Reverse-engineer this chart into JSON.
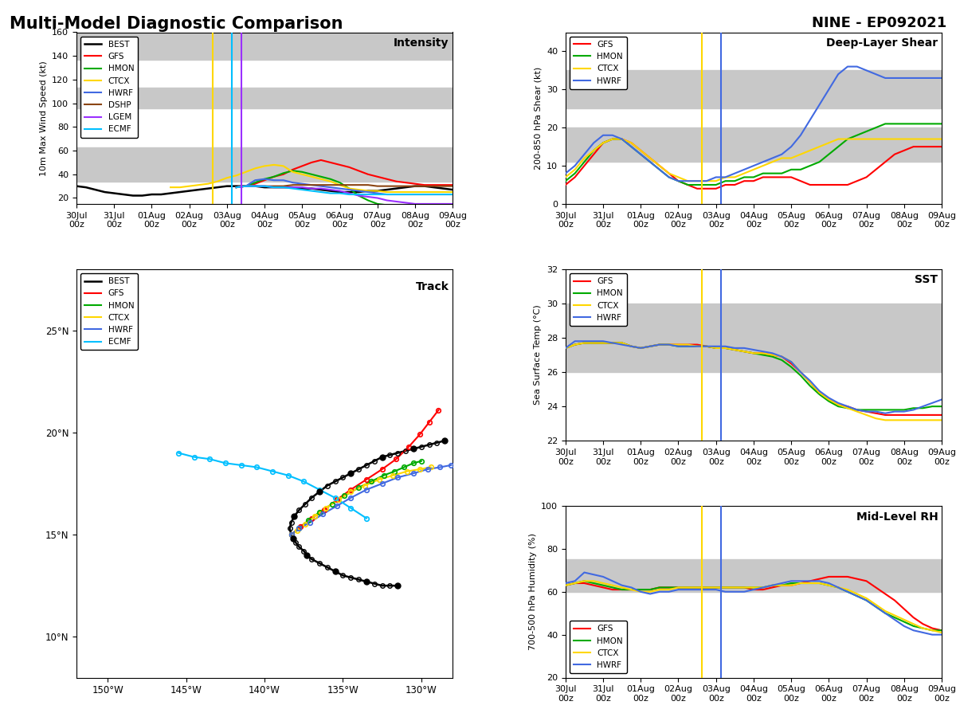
{
  "title_left": "Multi-Model Diagnostic Comparison",
  "title_right": "NINE - EP092021",
  "intensity": {
    "ylabel": "10m Max Wind Speed (kt)",
    "ylim": [
      15,
      160
    ],
    "yticks": [
      20,
      40,
      60,
      80,
      100,
      120,
      140,
      160
    ],
    "gray_band_ranges": [
      [
        34,
        63
      ],
      [
        96,
        113
      ],
      [
        137,
        160
      ]
    ],
    "models": {
      "BEST": {
        "color": "#000000",
        "lw": 1.8,
        "data": [
          30,
          29,
          27,
          25,
          24,
          23,
          22,
          22,
          23,
          23,
          24,
          25,
          26,
          27,
          28,
          29,
          30,
          30,
          30,
          30,
          29,
          29,
          29,
          29,
          28,
          28,
          27,
          26,
          25,
          25,
          25,
          26,
          26,
          27,
          28,
          29,
          30,
          30,
          29,
          28,
          27
        ]
      },
      "GFS": {
        "color": "#ff0000",
        "lw": 1.5,
        "data": [
          null,
          null,
          null,
          null,
          null,
          null,
          null,
          null,
          null,
          null,
          null,
          null,
          null,
          null,
          null,
          null,
          null,
          29,
          30,
          32,
          35,
          38,
          40,
          44,
          47,
          50,
          52,
          50,
          48,
          46,
          43,
          40,
          38,
          36,
          34,
          33,
          32,
          31,
          31,
          31,
          31
        ]
      },
      "HMON": {
        "color": "#00aa00",
        "lw": 1.5,
        "data": [
          null,
          null,
          null,
          null,
          null,
          null,
          null,
          null,
          null,
          null,
          null,
          null,
          null,
          null,
          null,
          null,
          null,
          29,
          30,
          33,
          36,
          38,
          41,
          43,
          42,
          40,
          38,
          36,
          33,
          28,
          22,
          18,
          15,
          14,
          14,
          13,
          13,
          13,
          13,
          13,
          13
        ]
      },
      "CTCX": {
        "color": "#ffd700",
        "lw": 1.5,
        "data": [
          null,
          null,
          null,
          null,
          null,
          null,
          null,
          null,
          null,
          null,
          29,
          29,
          30,
          31,
          32,
          34,
          37,
          39,
          42,
          45,
          47,
          48,
          47,
          42,
          40,
          38,
          36,
          34,
          31,
          28,
          27,
          26,
          26,
          25,
          25,
          25,
          25,
          25,
          25,
          25,
          25
        ]
      },
      "HWRF": {
        "color": "#4169e1",
        "lw": 1.5,
        "data": [
          null,
          null,
          null,
          null,
          null,
          null,
          null,
          null,
          null,
          null,
          null,
          null,
          null,
          null,
          null,
          null,
          null,
          29,
          30,
          35,
          36,
          35,
          35,
          33,
          32,
          31,
          30,
          29,
          28,
          27,
          26,
          25,
          24,
          23,
          23,
          23,
          23,
          23,
          23,
          23,
          23
        ]
      },
      "DSHP": {
        "color": "#8b4513",
        "lw": 1.5,
        "data": [
          null,
          null,
          null,
          null,
          null,
          null,
          null,
          null,
          null,
          null,
          null,
          null,
          null,
          null,
          null,
          null,
          null,
          29,
          30,
          30,
          30,
          30,
          30,
          31,
          31,
          31,
          31,
          31,
          31,
          31,
          31,
          31,
          30,
          30,
          30,
          30,
          30,
          30,
          30,
          30,
          30
        ]
      },
      "LGEM": {
        "color": "#9b30ff",
        "lw": 1.5,
        "data": [
          null,
          null,
          null,
          null,
          null,
          null,
          null,
          null,
          null,
          null,
          null,
          null,
          null,
          null,
          null,
          null,
          null,
          29,
          30,
          30,
          30,
          29,
          29,
          29,
          29,
          28,
          28,
          27,
          26,
          24,
          22,
          21,
          20,
          18,
          17,
          16,
          15,
          15,
          15,
          15,
          15
        ]
      },
      "ECMF": {
        "color": "#00bfff",
        "lw": 1.5,
        "data": [
          null,
          null,
          null,
          null,
          null,
          null,
          null,
          null,
          null,
          null,
          null,
          null,
          null,
          null,
          null,
          null,
          null,
          29,
          30,
          30,
          30,
          29,
          29,
          28,
          27,
          26,
          25,
          24,
          24,
          23,
          23,
          23,
          23,
          23,
          23,
          23,
          23,
          23,
          23,
          23,
          23
        ]
      }
    }
  },
  "shear": {
    "ylabel": "200-850 hPa Shear (kt)",
    "ylim": [
      0,
      45
    ],
    "yticks": [
      0,
      10,
      20,
      30,
      40
    ],
    "gray_band_ranges": [
      [
        11,
        20
      ],
      [
        25,
        35
      ]
    ],
    "models": {
      "GFS": {
        "color": "#ff0000",
        "lw": 1.5,
        "data": [
          5,
          7,
          10,
          13,
          16,
          17,
          17,
          16,
          14,
          12,
          10,
          8,
          6,
          5,
          4,
          4,
          4,
          5,
          5,
          6,
          6,
          7,
          7,
          7,
          7,
          6,
          5,
          5,
          5,
          5,
          5,
          6,
          7,
          9,
          11,
          13,
          14,
          15,
          15,
          15,
          15
        ]
      },
      "HMON": {
        "color": "#00aa00",
        "lw": 1.5,
        "data": [
          6,
          8,
          11,
          14,
          16,
          17,
          17,
          15,
          13,
          11,
          9,
          7,
          6,
          5,
          5,
          5,
          5,
          6,
          6,
          7,
          7,
          8,
          8,
          8,
          9,
          9,
          10,
          11,
          13,
          15,
          17,
          18,
          19,
          20,
          21,
          21,
          21,
          21,
          21,
          21,
          21
        ]
      },
      "CTCX": {
        "color": "#ffd700",
        "lw": 1.5,
        "data": [
          7,
          9,
          12,
          14,
          16,
          17,
          17,
          16,
          14,
          12,
          10,
          8,
          7,
          6,
          6,
          6,
          6,
          7,
          7,
          8,
          9,
          10,
          11,
          12,
          12,
          13,
          14,
          15,
          16,
          17,
          17,
          17,
          17,
          17,
          17,
          17,
          17,
          17,
          17,
          17,
          17
        ]
      },
      "HWRF": {
        "color": "#4169e1",
        "lw": 1.5,
        "data": [
          8,
          10,
          13,
          16,
          18,
          18,
          17,
          15,
          13,
          11,
          9,
          7,
          6,
          6,
          6,
          6,
          7,
          7,
          8,
          9,
          10,
          11,
          12,
          13,
          15,
          18,
          22,
          26,
          30,
          34,
          36,
          36,
          35,
          34,
          33,
          33,
          33,
          33,
          33,
          33,
          33
        ]
      }
    }
  },
  "sst": {
    "ylabel": "Sea Surface Temp (°C)",
    "ylim": [
      22,
      32
    ],
    "yticks": [
      22,
      24,
      26,
      28,
      30,
      32
    ],
    "gray_band_ranges": [
      [
        26,
        30
      ]
    ],
    "models": {
      "GFS": {
        "color": "#ff0000",
        "lw": 1.5,
        "data": [
          27.4,
          27.6,
          27.7,
          27.7,
          27.7,
          27.7,
          27.7,
          27.5,
          27.4,
          27.5,
          27.6,
          27.6,
          27.6,
          27.6,
          27.6,
          27.5,
          27.4,
          27.4,
          27.3,
          27.2,
          27.1,
          27.1,
          27.0,
          26.9,
          26.5,
          26.0,
          25.4,
          24.8,
          24.4,
          24.1,
          24.0,
          23.8,
          23.7,
          23.6,
          23.5,
          23.5,
          23.5,
          23.5,
          23.5,
          23.5,
          23.5
        ]
      },
      "HMON": {
        "color": "#00aa00",
        "lw": 1.5,
        "data": [
          27.4,
          27.6,
          27.7,
          27.7,
          27.7,
          27.7,
          27.7,
          27.5,
          27.4,
          27.5,
          27.6,
          27.6,
          27.5,
          27.5,
          27.5,
          27.5,
          27.4,
          27.4,
          27.3,
          27.2,
          27.1,
          27.0,
          26.9,
          26.7,
          26.3,
          25.8,
          25.2,
          24.7,
          24.3,
          24.0,
          23.9,
          23.8,
          23.8,
          23.8,
          23.8,
          23.8,
          23.8,
          23.9,
          23.9,
          24.0,
          24.0
        ]
      },
      "CTCX": {
        "color": "#ffd700",
        "lw": 1.5,
        "data": [
          27.4,
          27.6,
          27.7,
          27.7,
          27.7,
          27.7,
          27.7,
          27.5,
          27.4,
          27.5,
          27.6,
          27.6,
          27.6,
          27.6,
          27.5,
          27.5,
          27.4,
          27.4,
          27.3,
          27.2,
          27.1,
          27.1,
          27.0,
          26.9,
          26.6,
          26.0,
          25.4,
          24.8,
          24.4,
          24.1,
          23.9,
          23.7,
          23.5,
          23.3,
          23.2,
          23.2,
          23.2,
          23.2,
          23.2,
          23.2,
          23.2
        ]
      },
      "HWRF": {
        "color": "#4169e1",
        "lw": 1.5,
        "data": [
          27.4,
          27.8,
          27.8,
          27.8,
          27.8,
          27.7,
          27.6,
          27.5,
          27.4,
          27.5,
          27.6,
          27.6,
          27.5,
          27.5,
          27.5,
          27.5,
          27.5,
          27.5,
          27.4,
          27.4,
          27.3,
          27.2,
          27.1,
          26.9,
          26.6,
          26.0,
          25.5,
          24.9,
          24.5,
          24.2,
          24.0,
          23.8,
          23.7,
          23.7,
          23.6,
          23.7,
          23.7,
          23.8,
          24.0,
          24.2,
          24.4
        ]
      }
    }
  },
  "rh": {
    "ylabel": "700-500 hPa Humidity (%)",
    "ylim": [
      20,
      100
    ],
    "yticks": [
      20,
      40,
      60,
      80,
      100
    ],
    "gray_band_ranges": [
      [
        60,
        75
      ]
    ],
    "models": {
      "GFS": {
        "color": "#ff0000",
        "lw": 1.5,
        "data": [
          63,
          64,
          64,
          63,
          62,
          61,
          61,
          61,
          61,
          61,
          62,
          62,
          62,
          62,
          62,
          62,
          62,
          62,
          62,
          62,
          61,
          61,
          62,
          63,
          63,
          64,
          65,
          66,
          67,
          67,
          67,
          66,
          65,
          62,
          59,
          56,
          52,
          48,
          45,
          43,
          42
        ]
      },
      "HMON": {
        "color": "#00aa00",
        "lw": 1.5,
        "data": [
          63,
          64,
          65,
          64,
          63,
          62,
          61,
          61,
          61,
          61,
          62,
          62,
          62,
          62,
          62,
          62,
          62,
          62,
          62,
          62,
          62,
          62,
          63,
          63,
          64,
          64,
          64,
          64,
          63,
          62,
          60,
          58,
          56,
          53,
          50,
          48,
          46,
          44,
          43,
          42,
          42
        ]
      },
      "CTCX": {
        "color": "#ffd700",
        "lw": 1.5,
        "data": [
          63,
          64,
          65,
          65,
          64,
          63,
          62,
          61,
          60,
          60,
          61,
          61,
          62,
          62,
          62,
          62,
          62,
          62,
          62,
          62,
          62,
          62,
          63,
          63,
          63,
          64,
          64,
          64,
          63,
          62,
          61,
          59,
          57,
          54,
          51,
          49,
          47,
          45,
          43,
          42,
          41
        ]
      },
      "HWRF": {
        "color": "#4169e1",
        "lw": 1.5,
        "data": [
          64,
          65,
          69,
          68,
          67,
          65,
          63,
          62,
          60,
          59,
          60,
          60,
          61,
          61,
          61,
          61,
          61,
          60,
          60,
          60,
          61,
          62,
          63,
          64,
          65,
          65,
          65,
          65,
          64,
          62,
          60,
          58,
          56,
          53,
          50,
          47,
          44,
          42,
          41,
          40,
          40
        ]
      }
    }
  },
  "track": {
    "best_lons": [
      -131.5,
      -132.0,
      -132.5,
      -133.0,
      -133.5,
      -134.0,
      -134.5,
      -135.0,
      -135.5,
      -136.0,
      -136.5,
      -137.0,
      -137.3,
      -137.5,
      -137.8,
      -138.0,
      -138.2,
      -138.3,
      -138.4,
      -138.3,
      -138.1,
      -137.8,
      -137.4,
      -137.0,
      -136.5,
      -136.0,
      -135.5,
      -135.0,
      -134.5,
      -134.0,
      -133.5,
      -133.0,
      -132.5,
      -132.0,
      -131.5,
      -131.0,
      -130.5,
      -130.0,
      -129.5,
      -129.0,
      -128.5
    ],
    "best_lats": [
      12.5,
      12.5,
      12.5,
      12.6,
      12.7,
      12.8,
      12.9,
      13.0,
      13.2,
      13.4,
      13.6,
      13.8,
      14.0,
      14.2,
      14.4,
      14.6,
      14.8,
      15.0,
      15.3,
      15.6,
      15.9,
      16.2,
      16.5,
      16.8,
      17.1,
      17.4,
      17.6,
      17.8,
      18.0,
      18.2,
      18.4,
      18.6,
      18.8,
      18.9,
      19.0,
      19.1,
      19.2,
      19.3,
      19.4,
      19.5,
      19.6
    ],
    "gfs_lons": [
      -138.3,
      -137.7,
      -137.0,
      -136.2,
      -135.4,
      -134.5,
      -133.5,
      -132.5,
      -131.6,
      -130.8,
      -130.1,
      -129.5,
      -128.9
    ],
    "gfs_lats": [
      15.0,
      15.4,
      15.8,
      16.2,
      16.7,
      17.2,
      17.7,
      18.2,
      18.7,
      19.3,
      19.9,
      20.5,
      21.1
    ],
    "hmon_lons": [
      -138.3,
      -137.8,
      -137.2,
      -136.5,
      -135.7,
      -134.9,
      -134.0,
      -133.2,
      -132.4,
      -131.7,
      -131.1,
      -130.5,
      -130.0
    ],
    "hmon_lats": [
      15.0,
      15.3,
      15.7,
      16.1,
      16.5,
      16.9,
      17.3,
      17.6,
      17.9,
      18.1,
      18.3,
      18.5,
      18.6
    ],
    "ctcx_lons": [
      -138.3,
      -137.9,
      -137.4,
      -136.8,
      -136.1,
      -135.3,
      -134.5,
      -133.6,
      -132.7,
      -131.8,
      -130.9,
      -130.1,
      -129.4
    ],
    "ctcx_lats": [
      15.0,
      15.2,
      15.5,
      15.9,
      16.3,
      16.7,
      17.1,
      17.4,
      17.7,
      17.9,
      18.1,
      18.2,
      18.3
    ],
    "hwrf_lons": [
      -138.3,
      -137.8,
      -137.1,
      -136.3,
      -135.4,
      -134.5,
      -133.5,
      -132.5,
      -131.5,
      -130.5,
      -129.6,
      -128.8,
      -128.1
    ],
    "hwrf_lats": [
      15.0,
      15.3,
      15.6,
      16.0,
      16.4,
      16.8,
      17.2,
      17.5,
      17.8,
      18.0,
      18.2,
      18.3,
      18.4
    ],
    "ecmf_lons": [
      -145.5,
      -144.5,
      -143.5,
      -142.5,
      -141.5,
      -140.5,
      -139.5,
      -138.5,
      -137.5,
      -136.5,
      -135.5,
      -134.5,
      -133.5
    ],
    "ecmf_lats": [
      19.0,
      18.8,
      18.7,
      18.5,
      18.4,
      18.3,
      18.1,
      17.9,
      17.6,
      17.2,
      16.8,
      16.3,
      15.8
    ],
    "xlim": [
      -152,
      -128
    ],
    "ylim": [
      8,
      28
    ],
    "yticks": [
      10,
      15,
      20,
      25
    ],
    "xticks": [
      -150,
      -145,
      -140,
      -135,
      -130
    ]
  },
  "n_time": 41,
  "time_labels": [
    "30Jul\n00z",
    "31Jul\n00z",
    "01Aug\n00z",
    "02Aug\n00z",
    "03Aug\n00z",
    "04Aug\n00z",
    "05Aug\n00z",
    "06Aug\n00z",
    "07Aug\n00z",
    "08Aug\n00z",
    "09Aug\n00z"
  ],
  "vline_ctcx": 14.5,
  "vline_hwrf": 16.5,
  "vline_lgem": 17.5,
  "colors": {
    "BEST": "#000000",
    "GFS": "#ff0000",
    "HMON": "#00aa00",
    "CTCX": "#ffd700",
    "HWRF": "#4169e1",
    "DSHP": "#8b4513",
    "LGEM": "#9b30ff",
    "ECMF": "#00bfff"
  }
}
